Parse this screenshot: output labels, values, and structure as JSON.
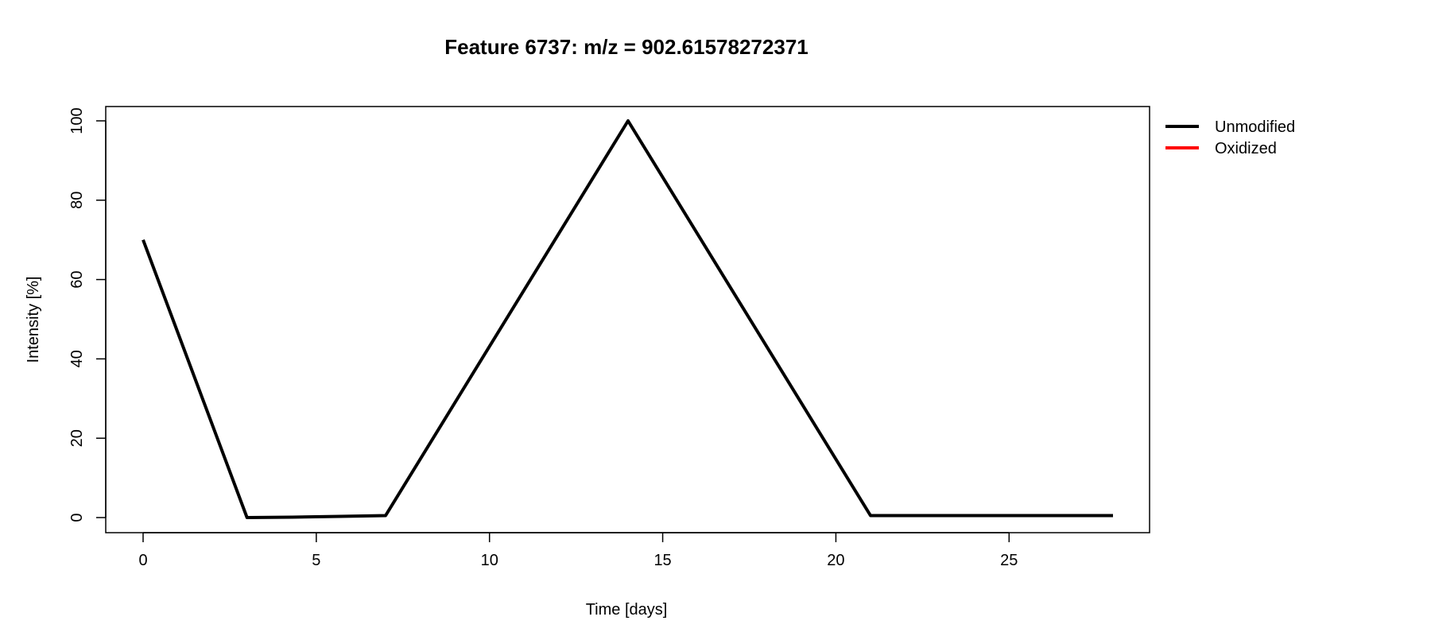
{
  "chart_data": {
    "type": "line",
    "title": "Feature 6737: m/z = 902.61578272371",
    "xlabel": "Time [days]",
    "ylabel": "Intensity [%]",
    "xlim": [
      0,
      28
    ],
    "ylim": [
      0,
      100
    ],
    "xticks": [
      "0",
      "5",
      "10",
      "15",
      "20",
      "25"
    ],
    "yticks": [
      "0",
      "20",
      "40",
      "60",
      "80",
      "100"
    ],
    "grid": false,
    "legend_position": "outside-top-right",
    "series": [
      {
        "name": "Unmodified",
        "color": "#000000",
        "x": [
          0,
          3,
          4.3,
          5.7,
          7,
          14,
          21,
          28
        ],
        "y": [
          70,
          0,
          0.1,
          0.3,
          0.5,
          100,
          0.5,
          0.5
        ]
      },
      {
        "name": "Oxidized",
        "color": "#ff0000",
        "x": [],
        "y": []
      }
    ]
  }
}
